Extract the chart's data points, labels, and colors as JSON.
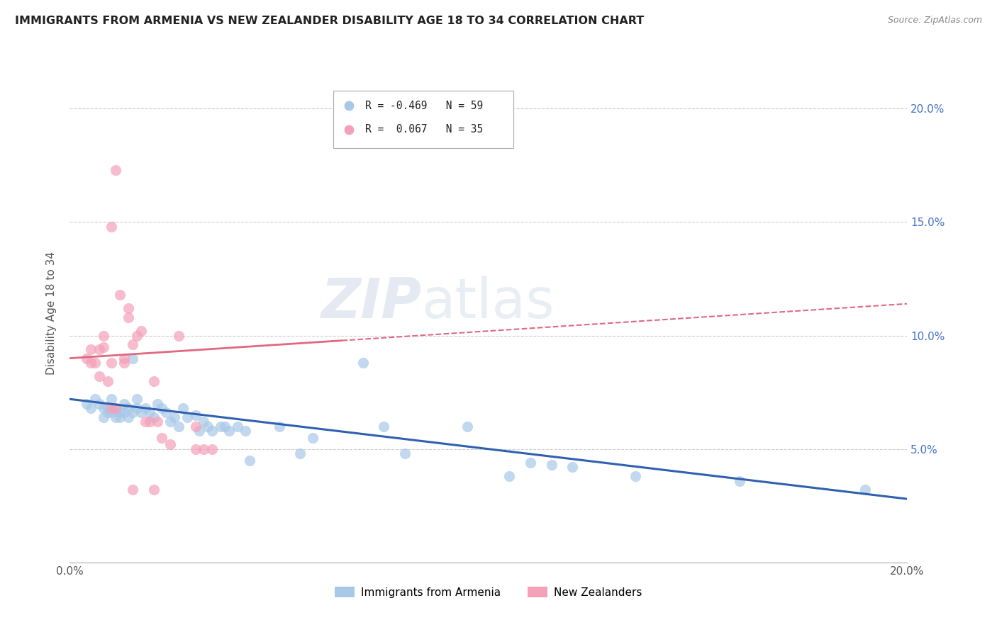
{
  "title": "IMMIGRANTS FROM ARMENIA VS NEW ZEALANDER DISABILITY AGE 18 TO 34 CORRELATION CHART",
  "source": "Source: ZipAtlas.com",
  "ylabel": "Disability Age 18 to 34",
  "xlim": [
    0.0,
    0.2
  ],
  "ylim": [
    0.0,
    0.22
  ],
  "yticks_right": [
    0.05,
    0.1,
    0.15,
    0.2
  ],
  "ytick_labels_right": [
    "5.0%",
    "10.0%",
    "15.0%",
    "20.0%"
  ],
  "legend_r1": "R = -0.469",
  "legend_n1": "N = 59",
  "legend_r2": "R =  0.067",
  "legend_n2": "N = 35",
  "color_blue": "#A8C8E8",
  "color_pink": "#F4A0B8",
  "color_line_blue": "#3060B0",
  "color_line_pink": "#E06880",
  "watermark_zip": "ZIP",
  "watermark_atlas": "atlas",
  "blue_series": [
    [
      0.004,
      0.07
    ],
    [
      0.005,
      0.068
    ],
    [
      0.006,
      0.072
    ],
    [
      0.007,
      0.07
    ],
    [
      0.008,
      0.068
    ],
    [
      0.008,
      0.064
    ],
    [
      0.009,
      0.066
    ],
    [
      0.009,
      0.068
    ],
    [
      0.01,
      0.072
    ],
    [
      0.01,
      0.066
    ],
    [
      0.011,
      0.064
    ],
    [
      0.011,
      0.068
    ],
    [
      0.012,
      0.066
    ],
    [
      0.012,
      0.064
    ],
    [
      0.013,
      0.07
    ],
    [
      0.013,
      0.066
    ],
    [
      0.014,
      0.064
    ],
    [
      0.014,
      0.068
    ],
    [
      0.015,
      0.09
    ],
    [
      0.015,
      0.066
    ],
    [
      0.016,
      0.072
    ],
    [
      0.016,
      0.068
    ],
    [
      0.017,
      0.066
    ],
    [
      0.018,
      0.068
    ],
    [
      0.019,
      0.066
    ],
    [
      0.02,
      0.064
    ],
    [
      0.021,
      0.07
    ],
    [
      0.022,
      0.068
    ],
    [
      0.023,
      0.066
    ],
    [
      0.024,
      0.062
    ],
    [
      0.025,
      0.064
    ],
    [
      0.026,
      0.06
    ],
    [
      0.027,
      0.068
    ],
    [
      0.028,
      0.064
    ],
    [
      0.03,
      0.065
    ],
    [
      0.031,
      0.058
    ],
    [
      0.032,
      0.062
    ],
    [
      0.033,
      0.06
    ],
    [
      0.034,
      0.058
    ],
    [
      0.036,
      0.06
    ],
    [
      0.037,
      0.06
    ],
    [
      0.038,
      0.058
    ],
    [
      0.04,
      0.06
    ],
    [
      0.042,
      0.058
    ],
    [
      0.043,
      0.045
    ],
    [
      0.05,
      0.06
    ],
    [
      0.055,
      0.048
    ],
    [
      0.058,
      0.055
    ],
    [
      0.07,
      0.088
    ],
    [
      0.075,
      0.06
    ],
    [
      0.08,
      0.048
    ],
    [
      0.095,
      0.06
    ],
    [
      0.105,
      0.038
    ],
    [
      0.11,
      0.044
    ],
    [
      0.115,
      0.043
    ],
    [
      0.12,
      0.042
    ],
    [
      0.135,
      0.038
    ],
    [
      0.16,
      0.036
    ],
    [
      0.19,
      0.032
    ]
  ],
  "pink_series": [
    [
      0.004,
      0.09
    ],
    [
      0.005,
      0.094
    ],
    [
      0.005,
      0.088
    ],
    [
      0.006,
      0.088
    ],
    [
      0.007,
      0.082
    ],
    [
      0.007,
      0.094
    ],
    [
      0.008,
      0.1
    ],
    [
      0.008,
      0.095
    ],
    [
      0.009,
      0.08
    ],
    [
      0.01,
      0.088
    ],
    [
      0.01,
      0.068
    ],
    [
      0.011,
      0.068
    ],
    [
      0.012,
      0.118
    ],
    [
      0.013,
      0.09
    ],
    [
      0.013,
      0.088
    ],
    [
      0.014,
      0.108
    ],
    [
      0.014,
      0.112
    ],
    [
      0.015,
      0.096
    ],
    [
      0.016,
      0.1
    ],
    [
      0.017,
      0.102
    ],
    [
      0.018,
      0.062
    ],
    [
      0.019,
      0.062
    ],
    [
      0.02,
      0.08
    ],
    [
      0.021,
      0.062
    ],
    [
      0.022,
      0.055
    ],
    [
      0.024,
      0.052
    ],
    [
      0.026,
      0.1
    ],
    [
      0.03,
      0.05
    ],
    [
      0.03,
      0.06
    ],
    [
      0.032,
      0.05
    ],
    [
      0.034,
      0.05
    ],
    [
      0.01,
      0.148
    ],
    [
      0.011,
      0.173
    ],
    [
      0.015,
      0.032
    ],
    [
      0.02,
      0.032
    ]
  ],
  "blue_line_x": [
    0.0,
    0.2
  ],
  "blue_line_y": [
    0.072,
    0.028
  ],
  "pink_line_x": [
    0.0,
    0.2
  ],
  "pink_line_y": [
    0.09,
    0.114
  ]
}
